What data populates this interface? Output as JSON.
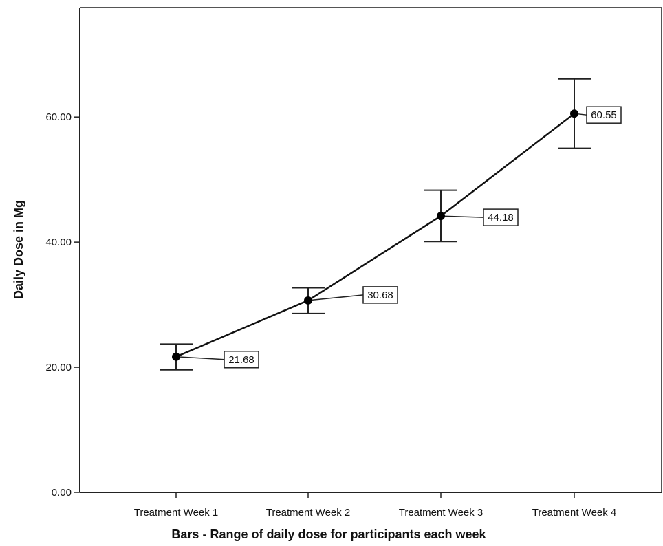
{
  "chart_data": {
    "type": "line",
    "title": "",
    "xlabel": "Bars - Range of daily dose for participants each week",
    "ylabel": "Daily Dose in Mg",
    "categories": [
      "Treatment Week 1",
      "Treatment Week 2",
      "Treatment Week 3",
      "Treatment Week 4"
    ],
    "series": [
      {
        "values": [
          21.68,
          30.68,
          44.18,
          60.55
        ],
        "error_low": [
          19.6,
          28.6,
          40.1,
          55.0
        ],
        "error_high": [
          23.7,
          32.7,
          48.3,
          66.1
        ]
      }
    ],
    "data_labels": [
      "21.68",
      "30.68",
      "44.18",
      "60.55"
    ],
    "yticks": [
      0,
      20,
      40,
      60
    ],
    "ytick_labels": [
      "0.00",
      "20.00",
      "40.00",
      "60.00"
    ],
    "ylim": [
      0,
      77.5
    ],
    "grid": false,
    "legend": "none"
  }
}
